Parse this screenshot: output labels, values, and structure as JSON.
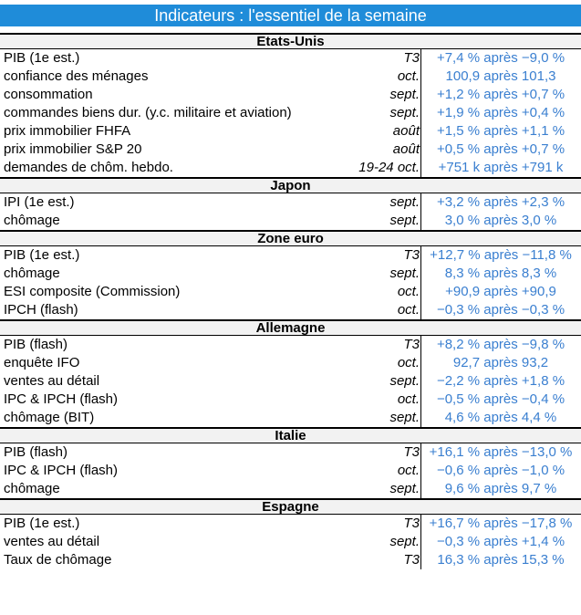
{
  "title": "Indicateurs : l'essentiel de la semaine",
  "colors": {
    "header_bg": "#1f8cd9",
    "value_text": "#3a7fd0"
  },
  "sections": [
    {
      "name": "Etats-Unis",
      "rows": [
        {
          "label": "PIB (1e est.)",
          "period": "T3",
          "value": "+7,4 % après −9,0 %"
        },
        {
          "label": "confiance des ménages",
          "period": "oct.",
          "value": "100,9 après 101,3"
        },
        {
          "label": "consommation",
          "period": "sept.",
          "value": "+1,2 % après +0,7 %"
        },
        {
          "label": "commandes biens dur. (y.c. militaire et aviation)",
          "period": "sept.",
          "value": "+1,9 % après +0,4 %"
        },
        {
          "label": "prix immobilier FHFA",
          "period": "août",
          "value": "+1,5 % après +1,1 %"
        },
        {
          "label": "prix immobilier S&P 20",
          "period": "août",
          "value": "+0,5 % après +0,7 %"
        },
        {
          "label": "demandes de chôm. hebdo.",
          "period": "19-24 oct.",
          "value": "+751 k après +791 k"
        }
      ]
    },
    {
      "name": "Japon",
      "rows": [
        {
          "label": "IPI (1e est.)",
          "period": "sept.",
          "value": "+3,2 % après +2,3 %"
        },
        {
          "label": "chômage",
          "period": "sept.",
          "value": "3,0 % après 3,0 %"
        }
      ]
    },
    {
      "name": "Zone euro",
      "rows": [
        {
          "label": "PIB (1e est.)",
          "period": "T3",
          "value": "+12,7 % après −11,8 %"
        },
        {
          "label": "chômage",
          "period": "sept.",
          "value": "8,3 % après 8,3 %"
        },
        {
          "label": "ESI composite (Commission)",
          "period": "oct.",
          "value": "+90,9 après +90,9"
        },
        {
          "label": "IPCH (flash)",
          "period": "oct.",
          "value": "−0,3 % après −0,3 %"
        }
      ]
    },
    {
      "name": "Allemagne",
      "rows": [
        {
          "label": "PIB (flash)",
          "period": "T3",
          "value": "+8,2 % après −9,8 %"
        },
        {
          "label": "enquête IFO",
          "period": "oct.",
          "value": "92,7 après 93,2"
        },
        {
          "label": "ventes au détail",
          "period": "sept.",
          "value": "−2,2 % après +1,8 %"
        },
        {
          "label": "IPC & IPCH (flash)",
          "period": "oct.",
          "value": "−0,5 % après −0,4 %"
        },
        {
          "label": "chômage (BIT)",
          "period": "sept.",
          "value": "4,6 % après 4,4 %"
        }
      ]
    },
    {
      "name": "Italie",
      "rows": [
        {
          "label": "PIB (flash)",
          "period": "T3",
          "value": "+16,1 % après −13,0 %"
        },
        {
          "label": "IPC & IPCH (flash)",
          "period": "oct.",
          "value": "−0,6 % après −1,0 %"
        },
        {
          "label": "chômage",
          "period": "sept.",
          "value": "9,6 % après 9,7 %"
        }
      ]
    },
    {
      "name": "Espagne",
      "rows": [
        {
          "label": "PIB (1e est.)",
          "period": "T3",
          "value": "+16,7 % après −17,8 %"
        },
        {
          "label": "ventes au détail",
          "period": "sept.",
          "value": "−0,3 % après +1,4 %"
        },
        {
          "label": "Taux de chômage",
          "period": "T3",
          "value": "16,3 % après 15,3 %"
        }
      ]
    }
  ]
}
